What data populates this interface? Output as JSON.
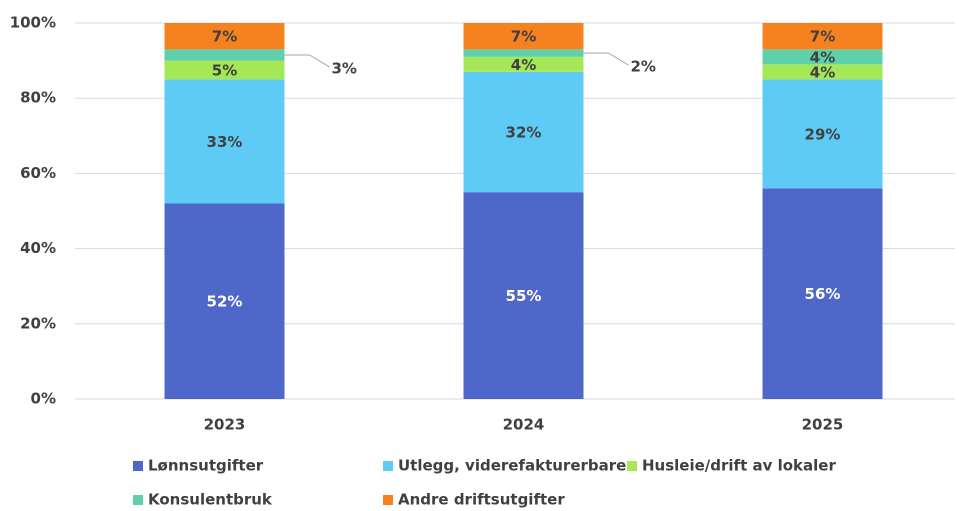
{
  "chart_data": {
    "type": "stacked_bar",
    "categories": [
      "2023",
      "2024",
      "2025"
    ],
    "series": [
      {
        "name": "Lønnsutgifter",
        "color": "#4f67c9",
        "values": [
          52,
          55,
          56
        ],
        "value_labels": [
          "52%",
          "55%",
          "56%"
        ]
      },
      {
        "name": "Utlegg, viderefakturerbare",
        "color": "#5dcbf5",
        "values": [
          33,
          32,
          29
        ],
        "value_labels": [
          "33%",
          "32%",
          "29%"
        ]
      },
      {
        "name": "Husleie/drift av lokaler",
        "color": "#a5e857",
        "values": [
          5,
          4,
          4
        ],
        "value_labels": [
          "5%",
          "4%",
          "4%"
        ]
      },
      {
        "name": "Konsulentbruk",
        "color": "#5fd0ab",
        "values": [
          3,
          2,
          4
        ],
        "value_labels": [
          "3%",
          "2%",
          "4%"
        ]
      },
      {
        "name": "Andre driftsutgifter",
        "color": "#f6821f",
        "values": [
          7,
          7,
          7
        ],
        "value_labels": [
          "7%",
          "7%",
          "7%"
        ]
      }
    ],
    "ylim": [
      0,
      100
    ],
    "yticks": [
      {
        "value": 0,
        "label": "0%"
      },
      {
        "value": 20,
        "label": "20%"
      },
      {
        "value": 40,
        "label": "40%"
      },
      {
        "value": 60,
        "label": "60%"
      },
      {
        "value": 80,
        "label": "80%"
      },
      {
        "value": 100,
        "label": "100%"
      }
    ],
    "grid": true
  }
}
